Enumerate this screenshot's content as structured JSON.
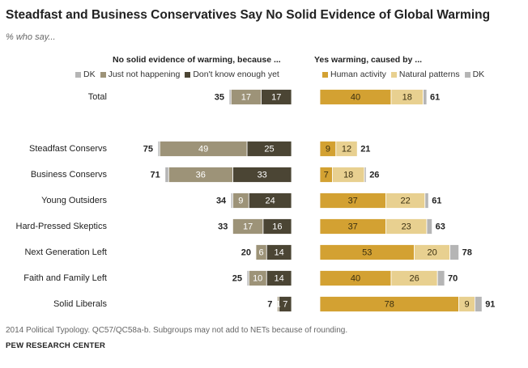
{
  "header": {
    "title": "Steadfast and Business Conservatives Say No Solid Evidence of Global Warming",
    "subtitle": "% who say..."
  },
  "footer": {
    "note": "2014 Political Typology. QC57/QC58a-b. Subgroups may not add to NETs because of rounding.",
    "source": "PEW RESEARCH CENTER"
  },
  "chart_data": {
    "type": "bar",
    "orientation": "horizontal",
    "stacked": true,
    "categories": [
      "Total",
      "Steadfast Conservs",
      "Business Conservs",
      "Young Outsiders",
      "Hard-Pressed Skeptics",
      "Next Generation Left",
      "Faith and Family Left",
      "Solid Liberals"
    ],
    "panels": [
      {
        "title": "No solid evidence of warming, because ...",
        "legend": [
          "DK",
          "Just not happening",
          "Don't know enough yet"
        ],
        "series": [
          {
            "name": "Don't know enough yet",
            "color": "#4b4534",
            "values": [
              17,
              25,
              33,
              24,
              16,
              14,
              14,
              7
            ]
          },
          {
            "name": "Just not happening",
            "color": "#9d9378",
            "values": [
              17,
              49,
              36,
              9,
              17,
              6,
              10,
              1
            ]
          },
          {
            "name": "DK",
            "color": "#b5b5b5",
            "values": [
              1,
              1,
              2,
              1,
              0,
              0,
              1,
              0
            ]
          }
        ],
        "net": [
          35,
          75,
          71,
          34,
          33,
          20,
          25,
          7
        ]
      },
      {
        "title": "Yes warming, caused by ...",
        "legend": [
          "Human activity",
          "Natural patterns",
          "DK"
        ],
        "series": [
          {
            "name": "Human activity",
            "color": "#d3a132",
            "values": [
              40,
              9,
              7,
              37,
              37,
              53,
              40,
              78
            ]
          },
          {
            "name": "Natural patterns",
            "color": "#e8d090",
            "values": [
              18,
              12,
              18,
              22,
              23,
              20,
              26,
              9
            ]
          },
          {
            "name": "DK",
            "color": "#b5b5b5",
            "values": [
              2,
              0,
              1,
              2,
              3,
              5,
              4,
              4
            ]
          }
        ],
        "net": [
          61,
          21,
          26,
          61,
          63,
          78,
          70,
          91
        ]
      }
    ]
  }
}
